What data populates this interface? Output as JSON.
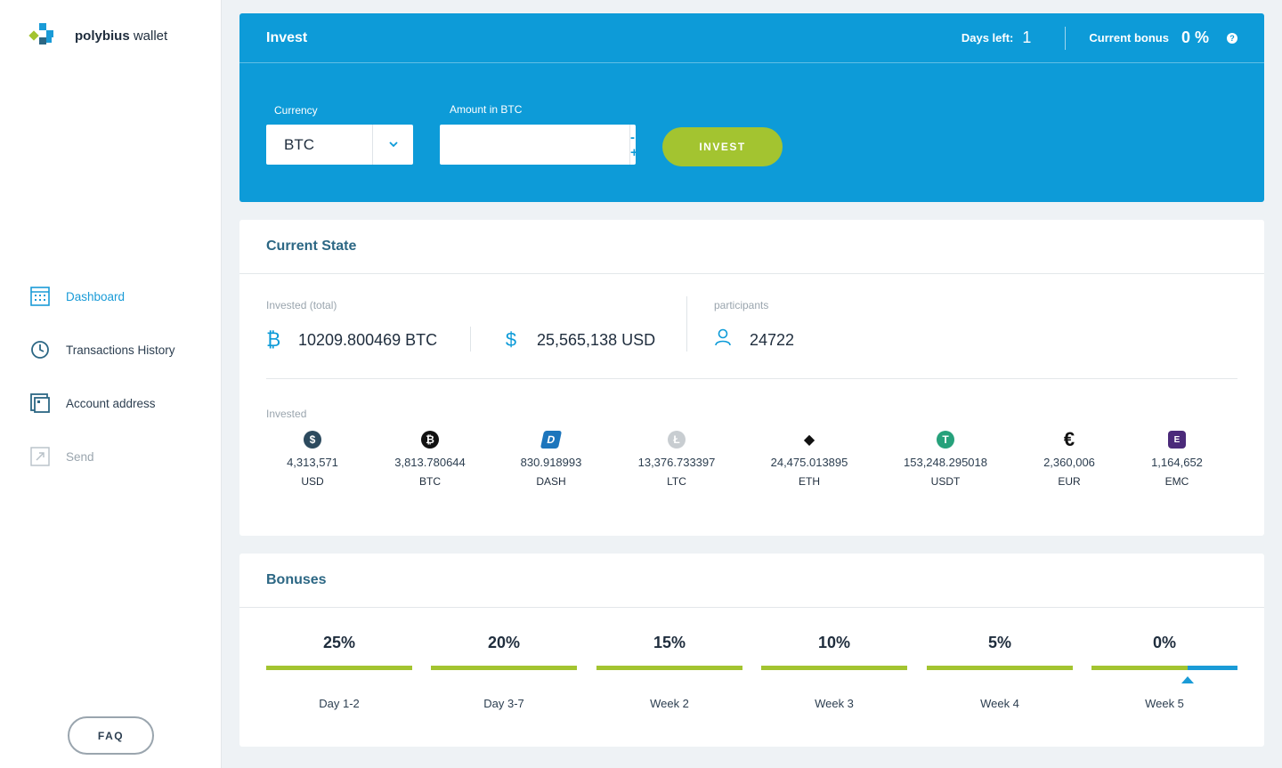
{
  "brand": {
    "name_bold": "polybius",
    "name_rest": " wallet"
  },
  "nav": [
    {
      "label": "Dashboard",
      "icon": "dashboard-icon",
      "state": "active"
    },
    {
      "label": "Transactions History",
      "icon": "clock-icon",
      "state": "normal"
    },
    {
      "label": "Account address",
      "icon": "address-card-icon",
      "state": "normal"
    },
    {
      "label": "Send",
      "icon": "send-arrow-icon",
      "state": "disabled"
    }
  ],
  "faq_label": "FAQ",
  "invest": {
    "title": "Invest",
    "days_left_label": "Days left:",
    "days_left_value": "1",
    "bonus_label": "Current bonus",
    "bonus_value": "0 %",
    "help_glyph": "?",
    "currency_label": "Currency",
    "currency_value": "BTC",
    "amount_label": "Amount in BTC",
    "amount_value": "",
    "stepper_label": "- +",
    "button_label": "INVEST"
  },
  "current_state": {
    "title": "Current State",
    "invested_total_label": "Invested (total)",
    "btc_total": "10209.800469 BTC",
    "usd_total": "25,565,138 USD",
    "participants_label": "participants",
    "participants_value": "24722",
    "invested_label": "Invested",
    "coins": [
      {
        "amount": "4,313,571",
        "currency": "USD",
        "icon": "usd-coin-icon",
        "color": "#2c4a5e",
        "glyph": "$"
      },
      {
        "amount": "3,813.780644",
        "currency": "BTC",
        "icon": "bitcoin-icon",
        "color": "#111111",
        "glyph": "₿"
      },
      {
        "amount": "830.918993",
        "currency": "DASH",
        "icon": "dash-icon",
        "color": "#1c75bc",
        "glyph": "D"
      },
      {
        "amount": "13,376.733397",
        "currency": "LTC",
        "icon": "litecoin-icon",
        "color": "#c8cdd1",
        "glyph": "Ł"
      },
      {
        "amount": "24,475.013895",
        "currency": "ETH",
        "icon": "ethereum-icon",
        "color": "#ffffff",
        "glyph": "◆"
      },
      {
        "amount": "153,248.295018",
        "currency": "USDT",
        "icon": "tether-icon",
        "color": "#26a17b",
        "glyph": "T"
      },
      {
        "amount": "2,360,006",
        "currency": "EUR",
        "icon": "euro-icon",
        "color": "#ffffff",
        "glyph": "€"
      },
      {
        "amount": "1,164,652",
        "currency": "EMC",
        "icon": "emercoin-icon",
        "color": "#4b2a7a",
        "glyph": "E"
      }
    ]
  },
  "bonuses": {
    "title": "Bonuses",
    "tiers": [
      {
        "pct": "25%",
        "period": "Day 1-2",
        "progress": 1.0
      },
      {
        "pct": "20%",
        "period": "Day 3-7",
        "progress": 1.0
      },
      {
        "pct": "15%",
        "period": "Week 2",
        "progress": 1.0
      },
      {
        "pct": "10%",
        "period": "Week 3",
        "progress": 1.0
      },
      {
        "pct": "5%",
        "period": "Week 4",
        "progress": 1.0
      },
      {
        "pct": "0%",
        "period": "Week 5",
        "progress": 0.66
      }
    ],
    "colors": {
      "done": "#a3c430",
      "remaining": "#1a9bd7"
    }
  }
}
